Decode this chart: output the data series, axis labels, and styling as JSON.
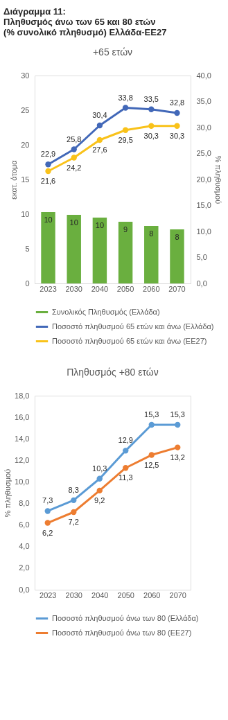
{
  "chart_data": [
    {
      "type": "bar",
      "title": "+65 ετών",
      "annotations": [
        "Διάγραμμα 11:\nΠληθυσμός άνω των 65 και 80 ετών\n(% συνολικό πληθυσμό) Ελλάδα-ΕΕ27"
      ],
      "categories": [
        "2023",
        "2030",
        "2040",
        "2050",
        "2060",
        "2070"
      ],
      "ylabel": "εκατ. άτομα",
      "y2label": "% πληθυσμού",
      "ylim": [
        0,
        30
      ],
      "yticks": [
        0,
        5,
        10,
        15,
        20,
        25,
        30
      ],
      "y2lim": [
        0,
        40
      ],
      "y2ticks": [
        {
          "value": 0,
          "label": "0,0"
        },
        {
          "value": 5,
          "label": "5,0"
        },
        {
          "value": 10,
          "label": "10,0"
        },
        {
          "value": 15,
          "label": "15,0"
        },
        {
          "value": 20,
          "label": "20,0"
        },
        {
          "value": 25,
          "label": "25,0"
        },
        {
          "value": 30,
          "label": "30,0"
        },
        {
          "value": 35,
          "label": "35,0"
        },
        {
          "value": 40,
          "label": "40,0"
        }
      ],
      "series": [
        {
          "name": "Συνολικός Πληθυσμός (Ελλάδα)",
          "type": "bar",
          "color": "#6aaf3f",
          "values": [
            10.3,
            9.9,
            9.5,
            8.9,
            8.3,
            7.8
          ],
          "value_labels": [
            "10",
            "10",
            "10",
            "9",
            "8",
            "8"
          ]
        },
        {
          "name": "Ποσοστό πληθυσμού 65 ετών και άνω (Ελλάδα)",
          "type": "line",
          "axis": "y2",
          "color": "#4268b8",
          "values": [
            22.9,
            25.8,
            30.4,
            33.8,
            33.5,
            32.8
          ],
          "value_labels": [
            "22,9",
            "25,8",
            "30,4",
            "33,8",
            "33,5",
            "32,8"
          ]
        },
        {
          "name": "Ποσοστό πληθυσμού 65 ετών και άνω (ΕΕ27)",
          "type": "line",
          "axis": "y2",
          "color": "#f9c21a",
          "values": [
            21.6,
            24.2,
            27.6,
            29.5,
            30.3,
            30.3
          ],
          "value_labels": [
            "21,6",
            "24,2",
            "27,6",
            "29,5",
            "30,3",
            "30,3"
          ]
        }
      ],
      "marker": "circle",
      "line_style": "solid",
      "grid": false,
      "legend": "bottom"
    },
    {
      "type": "line",
      "title": "Πληθυσμός +80 ετών",
      "categories": [
        "2023",
        "2030",
        "2040",
        "2050",
        "2060",
        "2070"
      ],
      "ylabel": "% πληθυσμού",
      "ylim": [
        0,
        18
      ],
      "yticks": [
        {
          "value": 0,
          "label": "0,0"
        },
        {
          "value": 2,
          "label": "2,0"
        },
        {
          "value": 4,
          "label": "4,0"
        },
        {
          "value": 6,
          "label": "6,0"
        },
        {
          "value": 8,
          "label": "8,0"
        },
        {
          "value": 10,
          "label": "10,0"
        },
        {
          "value": 12,
          "label": "12,0"
        },
        {
          "value": 14,
          "label": "14,0"
        },
        {
          "value": 16,
          "label": "16,0"
        },
        {
          "value": 18,
          "label": "18,0"
        }
      ],
      "series": [
        {
          "name": "Ποσοστό πληθυσμού άνω των 80 (Ελλάδα)",
          "color": "#5b9bd5",
          "values": [
            7.3,
            8.3,
            10.3,
            12.9,
            15.3,
            15.3
          ],
          "value_labels": [
            "7,3",
            "8,3",
            "10,3",
            "12,9",
            "15,3",
            "15,3"
          ]
        },
        {
          "name": "Ποσοστό πληθυσμού άνω των 80 (ΕΕ27)",
          "color": "#ed7d31",
          "values": [
            6.2,
            7.2,
            9.2,
            11.3,
            12.5,
            13.2
          ],
          "value_labels": [
            "6,2",
            "7,2",
            "9,2",
            "11,3",
            "12,5",
            "13,2"
          ]
        }
      ],
      "marker": "circle",
      "line_style": "solid",
      "grid": false,
      "legend": "bottom"
    }
  ]
}
